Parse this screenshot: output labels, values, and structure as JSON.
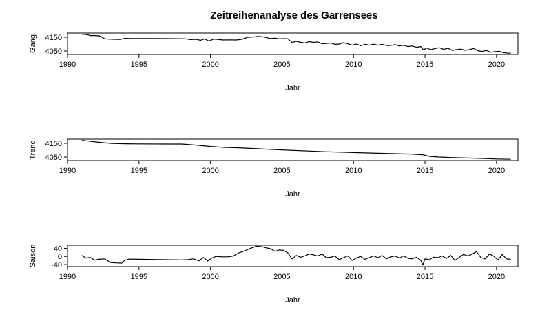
{
  "title": "Zeitreihenanalyse des Garrensees",
  "chart_data": [
    {
      "type": "line",
      "ylabel": "Gang",
      "xlabel": "Jahr",
      "xlim": [
        1990,
        2021.5
      ],
      "ylim": [
        4025,
        4180
      ],
      "xticks": [
        1990,
        1995,
        2000,
        2005,
        2010,
        2015,
        2020
      ],
      "yticks": [
        4050,
        4150
      ],
      "series": [
        {
          "x": [
            1991.0,
            1991.3,
            1991.6,
            1992.0,
            1992.3,
            1992.6,
            1993.0,
            1993.3,
            1993.7,
            1994.0,
            1994.5,
            1995.5,
            1997.0,
            1998.2,
            1998.6,
            1999.0,
            1999.3,
            1999.6,
            1999.9,
            2000.2,
            2000.5,
            2000.9,
            2001.3,
            2001.8,
            2002.2,
            2002.6,
            2003.0,
            2003.3,
            2003.6,
            2003.9,
            2004.2,
            2004.5,
            2004.8,
            2005.1,
            2005.4,
            2005.7,
            2006.0,
            2006.3,
            2006.6,
            2006.9,
            2007.2,
            2007.5,
            2007.8,
            2008.1,
            2008.4,
            2008.7,
            2009.0,
            2009.3,
            2009.6,
            2009.9,
            2010.2,
            2010.5,
            2010.8,
            2011.1,
            2011.4,
            2011.7,
            2012.0,
            2012.3,
            2012.6,
            2012.9,
            2013.2,
            2013.5,
            2013.8,
            2014.1,
            2014.4,
            2014.7,
            2014.9,
            2015.1,
            2015.4,
            2015.7,
            2016.0,
            2016.3,
            2016.6,
            2016.9,
            2017.2,
            2017.5,
            2017.8,
            2018.1,
            2018.4,
            2018.7,
            2019.0,
            2019.3,
            2019.6,
            2019.9,
            2020.2,
            2020.5,
            2020.8,
            2021.0
          ],
          "y": [
            4172,
            4170,
            4162,
            4162,
            4158,
            4138,
            4136,
            4135,
            4134,
            4142,
            4141,
            4141,
            4140,
            4139,
            4133,
            4135,
            4128,
            4138,
            4122,
            4136,
            4134,
            4130,
            4131,
            4130,
            4135,
            4150,
            4152,
            4156,
            4154,
            4148,
            4140,
            4144,
            4138,
            4140,
            4139,
            4112,
            4120,
            4113,
            4108,
            4118,
            4112,
            4116,
            4102,
            4104,
            4108,
            4098,
            4100,
            4110,
            4102,
            4092,
            4100,
            4088,
            4098,
            4092,
            4099,
            4092,
            4098,
            4090,
            4090,
            4096,
            4086,
            4092,
            4082,
            4086,
            4077,
            4082,
            4058,
            4072,
            4060,
            4068,
            4074,
            4062,
            4070,
            4054,
            4060,
            4064,
            4055,
            4060,
            4068,
            4052,
            4047,
            4054,
            4041,
            4046,
            4048,
            4038,
            4034,
            4035
          ]
        }
      ]
    },
    {
      "type": "line",
      "ylabel": "Trend",
      "xlabel": "Jahr",
      "xlim": [
        1990,
        2021.5
      ],
      "ylim": [
        4025,
        4180
      ],
      "xticks": [
        1990,
        1995,
        2000,
        2005,
        2010,
        2015,
        2020
      ],
      "yticks": [
        4050,
        4150
      ],
      "series": [
        {
          "x": [
            1991.0,
            1992.0,
            1993.0,
            1994.0,
            1995.0,
            1997.0,
            1998.0,
            1999.0,
            2000.0,
            2001.0,
            2002.0,
            2003.0,
            2005.0,
            2008.0,
            2011.0,
            2014.0,
            2014.9,
            2015.3,
            2016.0,
            2017.0,
            2018.0,
            2019.0,
            2020.0,
            2021.0
          ],
          "y": [
            4172,
            4160,
            4150,
            4147,
            4146,
            4145,
            4145,
            4137,
            4127,
            4120,
            4117,
            4112,
            4102,
            4089,
            4080,
            4072,
            4066,
            4055,
            4050,
            4046,
            4043,
            4040,
            4036,
            4034
          ]
        }
      ]
    },
    {
      "type": "line",
      "ylabel": "Saison",
      "xlabel": "Jahr",
      "xlim": [
        1990,
        2021.5
      ],
      "ylim": [
        -50,
        55
      ],
      "xticks": [
        1990,
        1995,
        2000,
        2005,
        2010,
        2015,
        2020
      ],
      "yticks": [
        -40,
        0,
        40
      ],
      "series": [
        {
          "x": [
            1991.0,
            1991.3,
            1991.6,
            1991.9,
            1992.2,
            1992.6,
            1993.0,
            1993.4,
            1993.8,
            1994.0,
            1994.3,
            1996.0,
            1998.0,
            1998.4,
            1998.8,
            1999.2,
            1999.5,
            1999.8,
            2000.1,
            2000.4,
            2000.8,
            2001.2,
            2001.6,
            2002.0,
            2002.4,
            2002.8,
            2003.2,
            2003.6,
            2003.9,
            2004.2,
            2004.5,
            2004.8,
            2005.1,
            2005.4,
            2005.7,
            2006.0,
            2006.3,
            2006.6,
            2006.9,
            2007.2,
            2007.5,
            2007.8,
            2008.1,
            2008.4,
            2008.7,
            2009.0,
            2009.3,
            2009.6,
            2009.9,
            2010.2,
            2010.5,
            2010.8,
            2011.1,
            2011.4,
            2011.7,
            2012.0,
            2012.3,
            2012.6,
            2012.9,
            2013.2,
            2013.5,
            2013.8,
            2014.1,
            2014.4,
            2014.7,
            2014.85,
            2015.0,
            2015.3,
            2015.6,
            2015.9,
            2016.2,
            2016.5,
            2016.8,
            2017.1,
            2017.4,
            2017.7,
            2018.0,
            2018.3,
            2018.6,
            2018.9,
            2019.2,
            2019.5,
            2019.8,
            2020.1,
            2020.4,
            2020.7,
            2021.0
          ],
          "y": [
            5,
            -8,
            -5,
            -18,
            -14,
            -12,
            -30,
            -32,
            -33,
            -20,
            -13,
            -15,
            -17,
            -16,
            -12,
            -22,
            -5,
            -23,
            -8,
            0,
            -2,
            -2,
            2,
            18,
            28,
            40,
            50,
            48,
            42,
            38,
            25,
            32,
            30,
            18,
            -12,
            5,
            -4,
            3,
            12,
            8,
            2,
            12,
            -6,
            -4,
            2,
            -16,
            -6,
            3,
            -20,
            -8,
            0,
            -14,
            -6,
            3,
            -6,
            5,
            -12,
            -2,
            2,
            -8,
            3,
            -9,
            -12,
            -4,
            -18,
            -42,
            -12,
            -16,
            -4,
            -6,
            2,
            -10,
            5,
            -20,
            -4,
            10,
            2,
            12,
            24,
            -5,
            -12,
            12,
            2,
            -18,
            10,
            -12,
            -14
          ]
        }
      ]
    }
  ]
}
